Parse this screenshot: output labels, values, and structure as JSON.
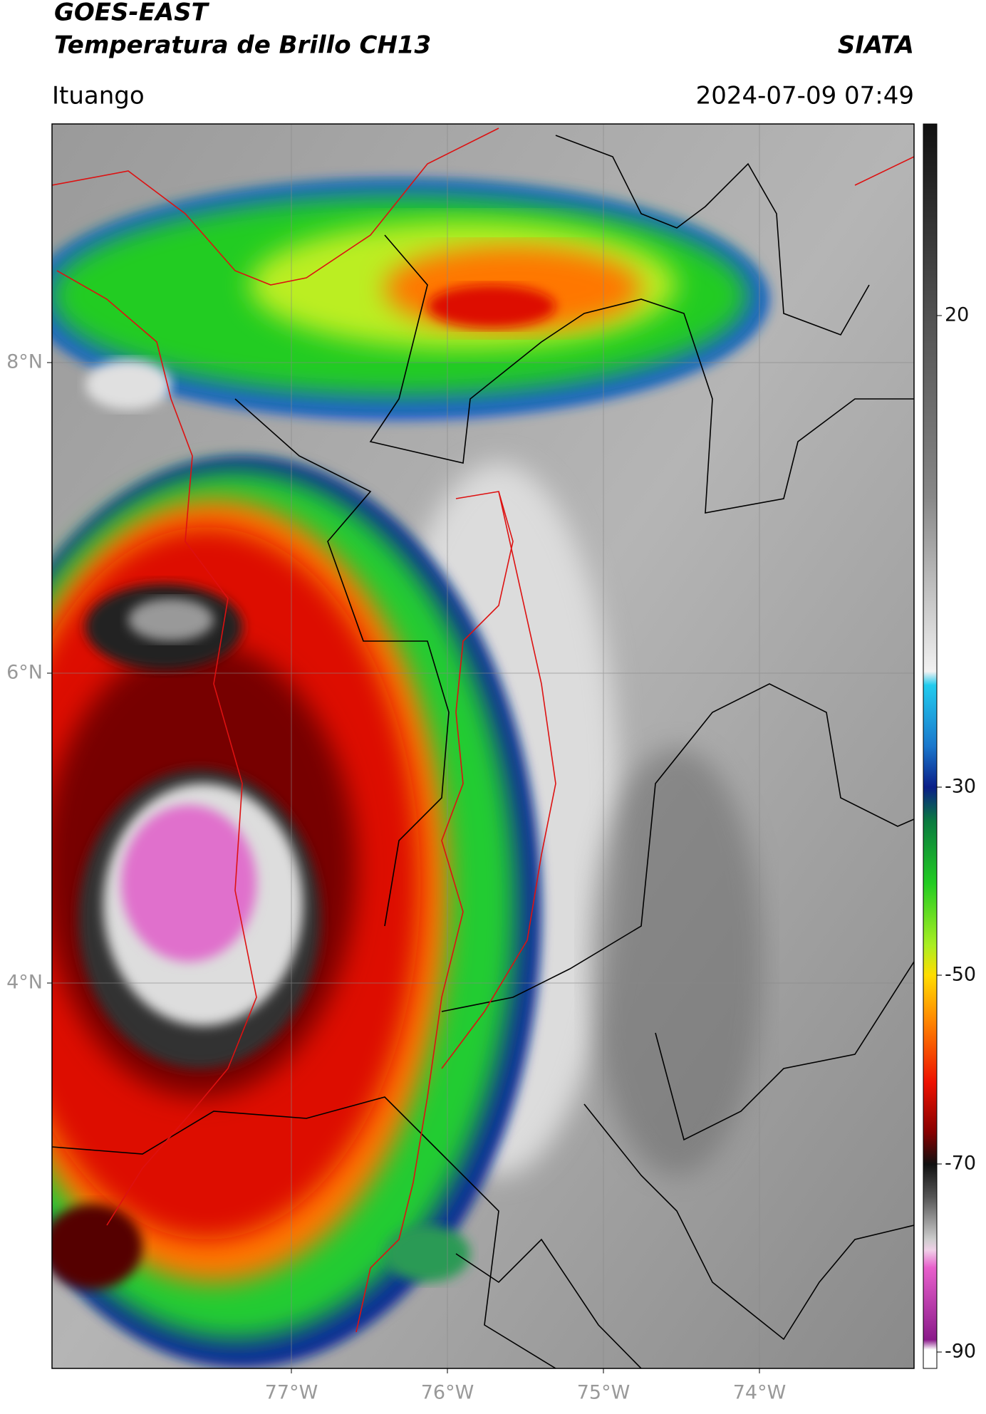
{
  "header": {
    "title": "GOES-EAST",
    "subtitle": "Temperatura de Brillo CH13",
    "source": "SIATA",
    "location": "Ituango",
    "datetime": "2024-07-09 07:49"
  },
  "map": {
    "lon_labels": [
      "77°W",
      "76°W",
      "75°W",
      "74°W"
    ],
    "lat_labels": [
      "8°N",
      "6°N",
      "4°N"
    ]
  },
  "colorbar": {
    "tick_labels": [
      "20",
      "-30",
      "-50",
      "-70",
      "-90"
    ]
  }
}
